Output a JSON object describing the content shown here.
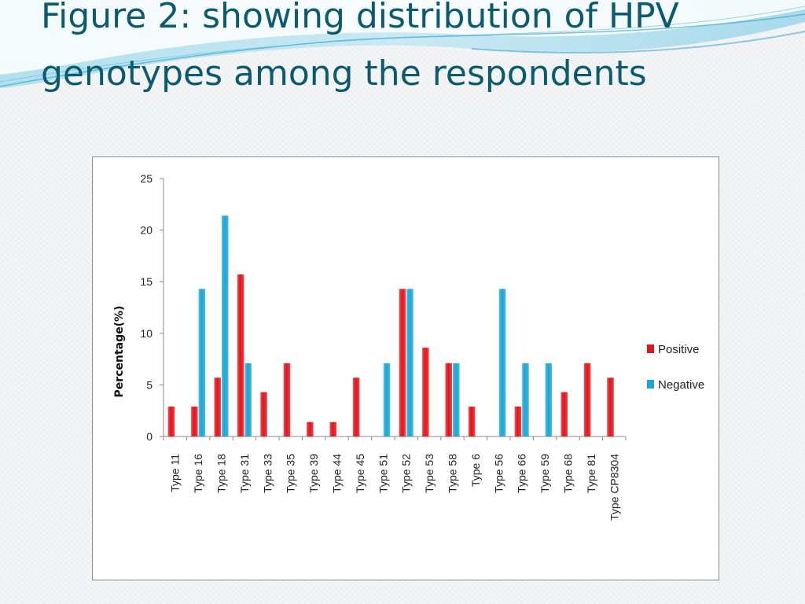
{
  "slide": {
    "title": "Figure 2: showing distribution of HPV genotypes among the respondents"
  },
  "colors": {
    "title": "#0b5a6e",
    "positive": "#e3141b",
    "negative": "#1aa6d6"
  },
  "chart_data": {
    "type": "bar",
    "title": "",
    "xlabel": "",
    "ylabel": "Percentage(%)",
    "ylim": [
      0,
      25
    ],
    "yticks": [
      0,
      5,
      10,
      15,
      20,
      25
    ],
    "grid": false,
    "legend_position": "right",
    "categories": [
      "Type 11",
      "Type 16",
      "Type 18",
      "Type 31",
      "Type 33",
      "Type 35",
      "Type 39",
      "Type 44",
      "Type 45",
      "Type 51",
      "Type 52",
      "Type 53",
      "Type 58",
      "Type 6",
      "Type 56",
      "Type 66",
      "Type 59",
      "Type 68",
      "Type 81",
      "Type  CP8304"
    ],
    "series": [
      {
        "name": "Positive",
        "values": [
          2.9,
          2.9,
          5.7,
          15.7,
          4.3,
          7.1,
          1.4,
          1.4,
          5.7,
          0,
          14.3,
          8.6,
          7.1,
          2.9,
          0,
          2.9,
          0,
          4.3,
          7.1,
          5.7
        ]
      },
      {
        "name": "Negative",
        "values": [
          0,
          14.3,
          21.4,
          7.1,
          0,
          0,
          0,
          0,
          0,
          7.1,
          14.3,
          0,
          7.1,
          0,
          14.3,
          7.1,
          7.1,
          0,
          0,
          0
        ]
      }
    ]
  }
}
